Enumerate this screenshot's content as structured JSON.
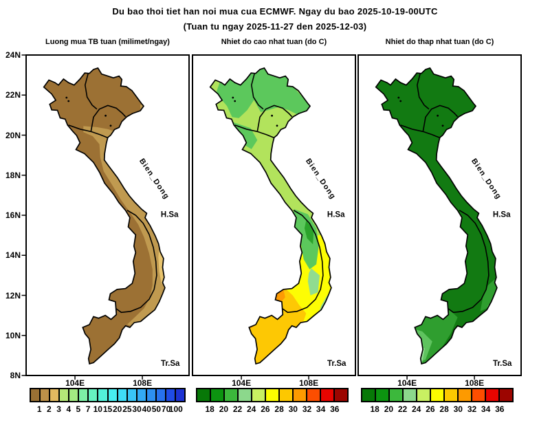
{
  "title": {
    "line1": "Du bao thoi tiet han noi mua cua ECMWF. Ngay du bao 2025-10-19-00UTC",
    "line2": "(Tuan tu ngay 2025-11-27 den 2025-12-03)"
  },
  "axes": {
    "lat": [
      "24N",
      "22N",
      "20N",
      "18N",
      "16N",
      "14N",
      "12N",
      "10N",
      "8N"
    ],
    "lon": [
      "104E",
      "108E"
    ]
  },
  "sea": {
    "name": "Bien_Dong",
    "paracel": "H.Sa",
    "spratly": "Tr.Sa"
  },
  "panels": [
    {
      "id": "rain",
      "title": "Luong mua TB tuan (milimet/ngay)",
      "colorbar": {
        "labels": [
          "1",
          "2",
          "3",
          "4",
          "5",
          "7",
          "10",
          "15",
          "20",
          "25",
          "30",
          "40",
          "50",
          "70",
          "100"
        ],
        "colors": [
          "#9a7034",
          "#bc9049",
          "#e3ba60",
          "#b5e878",
          "#a3ec82",
          "#7df0a6",
          "#66f2c1",
          "#53f1d9",
          "#47eef0",
          "#3fdcf6",
          "#39c5f6",
          "#33abf4",
          "#2d90f1",
          "#2772ee",
          "#1f4ce6",
          "#1c32d3"
        ]
      },
      "map_colors": {
        "base": "#9c7134",
        "coastal_band": "#c09a50",
        "coastal_spots": "#e8c46e"
      }
    },
    {
      "id": "tmax",
      "title": "Nhiet do cao nhat tuan (do C)",
      "colorbar": {
        "labels": [
          "18",
          "20",
          "22",
          "24",
          "26",
          "28",
          "30",
          "32",
          "34",
          "36"
        ],
        "colors": [
          "#077807",
          "#0c9410",
          "#3cb83c",
          "#8cd88c",
          "#c8f062",
          "#fdfd00",
          "#fdc800",
          "#fd9a00",
          "#fd4e00",
          "#e80500",
          "#9c0500"
        ]
      },
      "map_colors": {
        "lowlands": "#b2e35c",
        "mountains": "#5cc85c",
        "highlands_core": "#2ba32b",
        "highlands_pale": "#90dc90",
        "south_yellow": "#fdfd04",
        "south_gold": "#fdc804",
        "south_orange": "#fd9b04"
      }
    },
    {
      "id": "tmin",
      "title": "Nhiet do thap nhat tuan (do C)",
      "colorbar": {
        "labels": [
          "18",
          "20",
          "22",
          "24",
          "26",
          "28",
          "30",
          "32",
          "34",
          "36"
        ],
        "colors": [
          "#077807",
          "#0c9410",
          "#3cb83c",
          "#8cd88c",
          "#c8f062",
          "#fdfd00",
          "#fdc800",
          "#fd9a00",
          "#fd4e00",
          "#e80500",
          "#9c0500"
        ]
      },
      "map_colors": {
        "base": "#127a12",
        "delta_medium": "#2f9e2f",
        "delta_light": "#5fc35f",
        "delta_lightest": "#92dc92"
      }
    }
  ]
}
